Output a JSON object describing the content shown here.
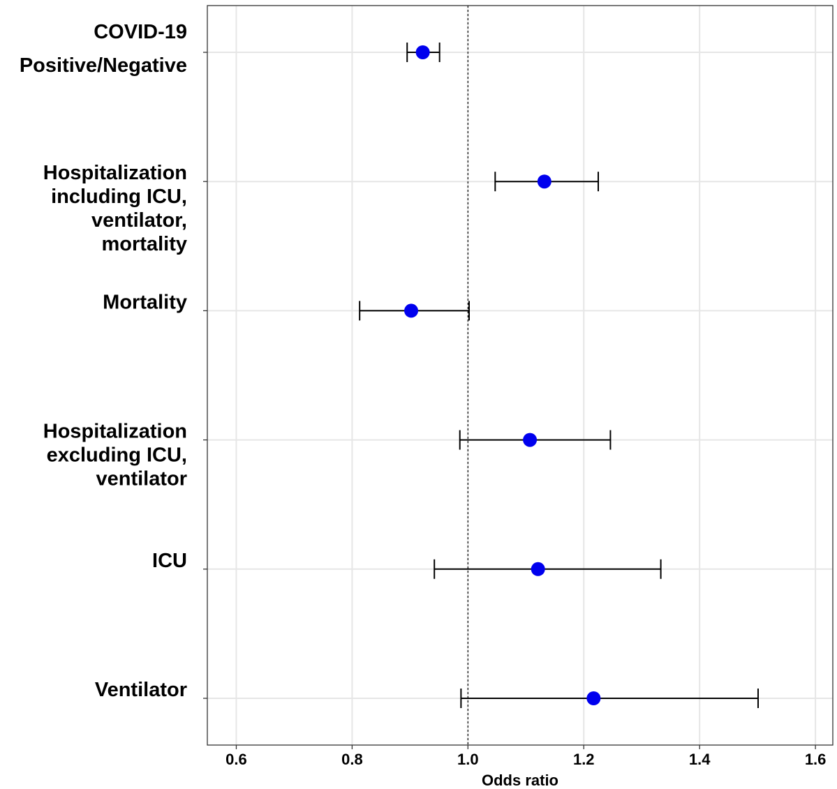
{
  "chart_data": {
    "type": "forest",
    "xlabel": "Odds ratio",
    "xlim": [
      0.55,
      1.63
    ],
    "xticks": [
      0.6,
      0.8,
      1.0,
      1.2,
      1.4,
      1.6
    ],
    "xtick_labels": [
      "0.6",
      "0.8",
      "1.0",
      "1.2",
      "1.4",
      "1.6"
    ],
    "reference_line": 1.0,
    "grid": true,
    "point_color": "#0000ee",
    "categories": [
      {
        "label_lines": [
          "COVID-19",
          "Positive/Negative"
        ],
        "estimate": 0.922,
        "lower": 0.895,
        "upper": 0.951
      },
      {
        "label_lines": [
          "Hospitalization",
          "including ICU,",
          "ventilator,",
          "mortality"
        ],
        "estimate": 1.132,
        "lower": 1.047,
        "upper": 1.225
      },
      {
        "label_lines": [
          "Mortality"
        ],
        "estimate": 0.902,
        "lower": 0.813,
        "upper": 1.002
      },
      {
        "label_lines": [
          "Hospitalization",
          "excluding ICU,",
          "ventilator"
        ],
        "estimate": 1.107,
        "lower": 0.986,
        "upper": 1.246
      },
      {
        "label_lines": [
          "ICU"
        ],
        "estimate": 1.121,
        "lower": 0.942,
        "upper": 1.333
      },
      {
        "label_lines": [
          "Ventilator"
        ],
        "estimate": 1.217,
        "lower": 0.988,
        "upper": 1.501
      }
    ]
  }
}
